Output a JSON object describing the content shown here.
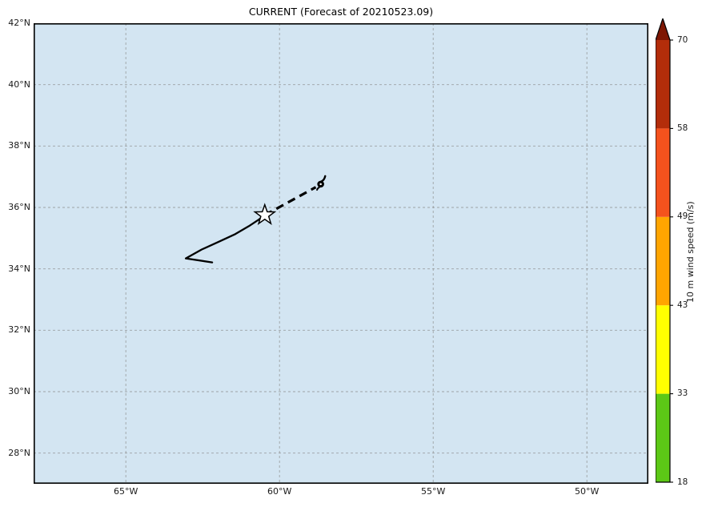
{
  "title": "CURRENT (Forecast of 20210523.09)",
  "style": {
    "ocean_color": "#D3E5F2",
    "grid_color": "#8C8C8C",
    "track_color": "#000000",
    "spine_color": "#000000",
    "star_fill": "#FFFFFF"
  },
  "chart_data": {
    "type": "line",
    "title": "CURRENT (Forecast of 20210523.09)",
    "projection": "lat-lon map",
    "xlim_deg_west": [
      68,
      48
    ],
    "ylim_deg_north": [
      27,
      42
    ],
    "x_tick_values_deg_west": [
      65,
      60,
      55,
      50
    ],
    "x_tick_labels": [
      "65°W",
      "60°W",
      "55°W",
      "50°W"
    ],
    "y_tick_values_deg_north": [
      42,
      40,
      38,
      36,
      34,
      32,
      30,
      28
    ],
    "y_tick_labels": [
      "42°N",
      "40°N",
      "38°N",
      "36°N",
      "34°N",
      "32°N",
      "30°N",
      "28°N"
    ],
    "y_gridline_values_deg_north": [
      40,
      38,
      36,
      34,
      32,
      30,
      28
    ],
    "grid": "dashed",
    "series": [
      {
        "name": "past-track",
        "style": "solid",
        "color": "#000000",
        "points_lonW_latN": [
          [
            62.19,
            34.21
          ],
          [
            63.05,
            34.34
          ],
          [
            62.53,
            34.63
          ],
          [
            61.96,
            34.89
          ],
          [
            61.44,
            35.13
          ],
          [
            61.0,
            35.39
          ],
          [
            60.68,
            35.6
          ],
          [
            60.48,
            35.75
          ]
        ]
      },
      {
        "name": "forecast-track",
        "style": "dashed",
        "color": "#000000",
        "points_lonW_latN": [
          [
            60.48,
            35.75
          ],
          [
            58.82,
            36.66
          ]
        ]
      }
    ],
    "markers": [
      {
        "name": "current-position",
        "symbol": "star",
        "lonW": 60.48,
        "latN": 35.75
      },
      {
        "name": "forecast-endpoint",
        "symbol": "tropical-cyclone",
        "lonW": 58.66,
        "latN": 36.76
      }
    ],
    "colorbar": {
      "label": "10 m wind speed (m/s)",
      "tick_values": [
        18,
        33,
        43,
        49,
        58,
        70
      ],
      "boundaries": [
        18,
        33,
        43,
        49,
        58,
        70
      ],
      "spacing": "uniform",
      "extend": "max",
      "segment_colors_bottom_to_top": [
        "#5CC816",
        "#FFFF00",
        "#FFA500",
        "#F4521D",
        "#B32D0A"
      ],
      "over_arrow_color": "#7E1703"
    }
  }
}
